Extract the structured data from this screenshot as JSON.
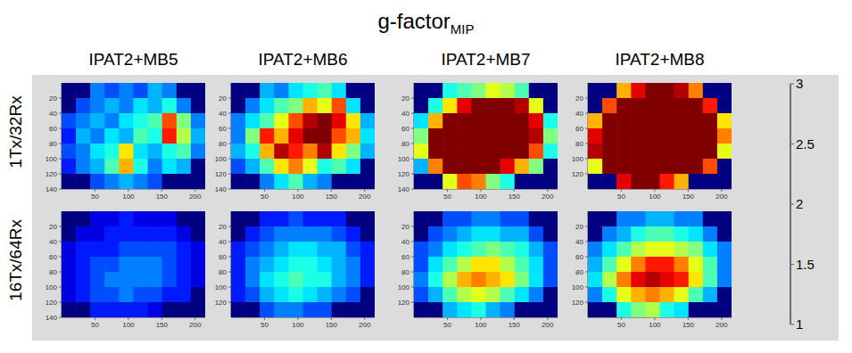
{
  "title": "g-factor",
  "title_subscript": "MIP",
  "columns": [
    "IPAT2+MB5",
    "IPAT2+MB6",
    "IPAT2+MB7",
    "IPAT2+MB8"
  ],
  "rows": [
    "1Tx/32Rx",
    "16Tx/64Rx"
  ],
  "colorbar": {
    "range": [
      1,
      3
    ],
    "ticks": [
      1,
      1.5,
      2,
      2.5,
      3
    ]
  },
  "chart_data": [
    {
      "type": "heatmap",
      "xlim": [
        0,
        215
      ],
      "ylim": [
        0,
        140
      ],
      "xticks": [
        50,
        100,
        150,
        200
      ],
      "yticks": [
        20,
        40,
        60,
        80,
        100,
        120,
        140
      ],
      "cells": [
        [
          1,
          1,
          1.5,
          1.4,
          1.5,
          1.4,
          1.6,
          1.5,
          1,
          1
        ],
        [
          1,
          1.4,
          1.5,
          1.6,
          1.5,
          1.7,
          1.6,
          1.8,
          1.5,
          1
        ],
        [
          1.4,
          1.5,
          1.6,
          1.5,
          1.7,
          1.8,
          1.9,
          2.6,
          2.0,
          1.5
        ],
        [
          1.3,
          1.6,
          1.5,
          1.7,
          1.6,
          1.9,
          1.8,
          2.7,
          2.1,
          1.6
        ],
        [
          1.4,
          1.5,
          1.7,
          1.8,
          2.3,
          1.7,
          1.6,
          1.8,
          1.9,
          1.5
        ],
        [
          1.3,
          1.5,
          1.6,
          1.9,
          2.4,
          1.8,
          1.5,
          1.7,
          1.6,
          1
        ],
        [
          1,
          1,
          1.4,
          1.5,
          1.6,
          1.5,
          1.4,
          1,
          1,
          1
        ]
      ]
    },
    {
      "type": "heatmap",
      "xlim": [
        0,
        215
      ],
      "ylim": [
        0,
        140
      ],
      "xticks": [
        50,
        100,
        150,
        200
      ],
      "yticks": [
        20,
        40,
        60,
        80,
        100,
        120,
        140
      ],
      "cells": [
        [
          1,
          1,
          1.6,
          1.5,
          1.7,
          1.8,
          1.9,
          1.7,
          1,
          1
        ],
        [
          1,
          1.5,
          1.7,
          1.9,
          2.0,
          2.4,
          2.2,
          2.6,
          1.7,
          1
        ],
        [
          1.5,
          1.7,
          1.9,
          2.2,
          2.6,
          2.9,
          3,
          2.8,
          2.3,
          1.6
        ],
        [
          1.5,
          2.0,
          2.7,
          2.4,
          2.8,
          3,
          3,
          2.6,
          2.4,
          1.7
        ],
        [
          1.6,
          1.8,
          2.4,
          2.9,
          2.7,
          2.5,
          2.9,
          2.3,
          2.0,
          1.6
        ],
        [
          1.4,
          1.6,
          1.9,
          2.3,
          2.5,
          2.2,
          1.8,
          1.9,
          1.7,
          1
        ],
        [
          1,
          1,
          1.5,
          1.7,
          1.9,
          1.6,
          1.5,
          1,
          1,
          1
        ]
      ]
    },
    {
      "type": "heatmap",
      "xlim": [
        0,
        215
      ],
      "ylim": [
        0,
        140
      ],
      "xticks": [
        50,
        100,
        150,
        200
      ],
      "yticks": [
        20,
        40,
        60,
        80,
        100,
        120,
        140
      ],
      "cells": [
        [
          1,
          1,
          1.8,
          1.9,
          2.0,
          2.2,
          2.1,
          1.9,
          1,
          1
        ],
        [
          1,
          1.8,
          2.3,
          2.8,
          3,
          3,
          3,
          2.9,
          2.2,
          1
        ],
        [
          1.7,
          2.4,
          3,
          3,
          3,
          3,
          3,
          3,
          2.8,
          1.8
        ],
        [
          2.0,
          3,
          3,
          3,
          3,
          3,
          3,
          3,
          2.9,
          2.0
        ],
        [
          2.2,
          3,
          3,
          3,
          3,
          3,
          3,
          3,
          2.6,
          1.8
        ],
        [
          1.6,
          2.5,
          3,
          3,
          3,
          3,
          2.8,
          2.4,
          2.0,
          1
        ],
        [
          1,
          1,
          2.2,
          2.6,
          2.5,
          2.0,
          1.8,
          1,
          1,
          1
        ]
      ]
    },
    {
      "type": "heatmap",
      "xlim": [
        0,
        215
      ],
      "ylim": [
        0,
        140
      ],
      "xticks": [
        50,
        100,
        150,
        200
      ],
      "yticks": [
        20,
        40,
        60,
        80,
        100,
        120
      ],
      "cells": [
        [
          1,
          1,
          2.4,
          2.8,
          3,
          3,
          2.9,
          2.5,
          1,
          1
        ],
        [
          1,
          2.6,
          3,
          3,
          3,
          3,
          3,
          3,
          2.7,
          1
        ],
        [
          2.4,
          3,
          3,
          3,
          3,
          3,
          3,
          3,
          3,
          2.3
        ],
        [
          2.8,
          3,
          3,
          3,
          3,
          3,
          3,
          3,
          3,
          2.5
        ],
        [
          2.9,
          3,
          3,
          3,
          3,
          3,
          3,
          3,
          3,
          2.2
        ],
        [
          2.2,
          3,
          3,
          3,
          3,
          3,
          3,
          3,
          2.6,
          1
        ],
        [
          1,
          1,
          2.8,
          3,
          3,
          2.7,
          2.4,
          1,
          1,
          1
        ]
      ]
    },
    {
      "type": "heatmap",
      "xlim": [
        0,
        215
      ],
      "ylim": [
        0,
        140
      ],
      "xticks": [
        50,
        100,
        150,
        200
      ],
      "yticks": [
        20,
        40,
        60,
        80,
        100,
        120,
        140
      ],
      "cells": [
        [
          1,
          1,
          1.2,
          1.2,
          1.3,
          1.2,
          1.2,
          1.2,
          1,
          1
        ],
        [
          1,
          1.2,
          1.2,
          1.3,
          1.3,
          1.3,
          1.3,
          1.3,
          1.2,
          1
        ],
        [
          1.2,
          1.3,
          1.3,
          1.3,
          1.4,
          1.4,
          1.4,
          1.4,
          1.3,
          1.2
        ],
        [
          1.2,
          1.3,
          1.4,
          1.4,
          1.5,
          1.5,
          1.5,
          1.4,
          1.3,
          1.2
        ],
        [
          1.2,
          1.3,
          1.4,
          1.5,
          1.5,
          1.5,
          1.5,
          1.4,
          1.3,
          1.2
        ],
        [
          1.2,
          1.3,
          1.4,
          1.4,
          1.5,
          1.4,
          1.4,
          1.3,
          1.3,
          1
        ],
        [
          1,
          1,
          1.3,
          1.3,
          1.3,
          1.3,
          1.2,
          1,
          1,
          1
        ]
      ]
    },
    {
      "type": "heatmap",
      "xlim": [
        0,
        215
      ],
      "ylim": [
        0,
        140
      ],
      "xticks": [
        50,
        100,
        150,
        200
      ],
      "yticks": [
        20,
        40,
        60,
        80,
        100,
        120
      ],
      "cells": [
        [
          1,
          1,
          1.3,
          1.3,
          1.4,
          1.3,
          1.3,
          1.3,
          1,
          1
        ],
        [
          1,
          1.3,
          1.4,
          1.5,
          1.5,
          1.5,
          1.5,
          1.4,
          1.3,
          1
        ],
        [
          1.3,
          1.4,
          1.5,
          1.6,
          1.7,
          1.7,
          1.6,
          1.6,
          1.4,
          1.3
        ],
        [
          1.3,
          1.5,
          1.6,
          1.7,
          1.8,
          1.8,
          1.7,
          1.6,
          1.5,
          1.3
        ],
        [
          1.3,
          1.5,
          1.7,
          1.8,
          1.9,
          1.8,
          1.8,
          1.6,
          1.5,
          1.3
        ],
        [
          1.3,
          1.4,
          1.6,
          1.7,
          1.8,
          1.7,
          1.6,
          1.5,
          1.4,
          1
        ],
        [
          1,
          1,
          1.4,
          1.5,
          1.5,
          1.4,
          1.4,
          1,
          1,
          1
        ]
      ]
    },
    {
      "type": "heatmap",
      "xlim": [
        0,
        215
      ],
      "ylim": [
        0,
        140
      ],
      "xticks": [
        50,
        100,
        150,
        200
      ],
      "yticks": [
        20,
        40,
        60,
        80,
        100,
        120
      ],
      "cells": [
        [
          1,
          1,
          1.4,
          1.4,
          1.5,
          1.5,
          1.4,
          1.4,
          1,
          1
        ],
        [
          1,
          1.4,
          1.5,
          1.6,
          1.7,
          1.7,
          1.6,
          1.6,
          1.4,
          1
        ],
        [
          1.4,
          1.5,
          1.7,
          1.8,
          1.9,
          2.0,
          1.9,
          1.8,
          1.6,
          1.4
        ],
        [
          1.4,
          1.7,
          1.9,
          2.1,
          2.3,
          2.3,
          2.1,
          1.9,
          1.7,
          1.4
        ],
        [
          1.5,
          1.8,
          2.1,
          2.4,
          2.5,
          2.4,
          2.3,
          2.0,
          1.7,
          1.4
        ],
        [
          1.4,
          1.6,
          1.9,
          2.1,
          2.2,
          2.1,
          1.9,
          1.7,
          1.5,
          1
        ],
        [
          1,
          1,
          1.6,
          1.7,
          1.8,
          1.6,
          1.5,
          1,
          1,
          1
        ]
      ]
    },
    {
      "type": "heatmap",
      "xlim": [
        0,
        215
      ],
      "ylim": [
        0,
        140
      ],
      "xticks": [
        50,
        100,
        150,
        200
      ],
      "yticks": [
        20,
        40,
        60,
        80,
        100,
        120
      ],
      "cells": [
        [
          1,
          1,
          1.5,
          1.5,
          1.6,
          1.6,
          1.5,
          1.5,
          1,
          1
        ],
        [
          1,
          1.5,
          1.6,
          1.8,
          1.9,
          1.9,
          1.8,
          1.7,
          1.5,
          1
        ],
        [
          1.5,
          1.7,
          1.9,
          2.1,
          2.2,
          2.2,
          2.1,
          2.0,
          1.7,
          1.5
        ],
        [
          1.6,
          1.9,
          2.2,
          2.5,
          2.7,
          2.7,
          2.5,
          2.2,
          1.9,
          1.5
        ],
        [
          1.7,
          2.1,
          2.5,
          2.8,
          2.9,
          2.8,
          2.7,
          2.3,
          1.9,
          1.5
        ],
        [
          1.5,
          1.8,
          2.2,
          2.4,
          2.5,
          2.4,
          2.2,
          1.9,
          1.6,
          1
        ],
        [
          1,
          1,
          1.8,
          2.0,
          2.1,
          1.8,
          1.7,
          1,
          1,
          1
        ]
      ]
    }
  ]
}
